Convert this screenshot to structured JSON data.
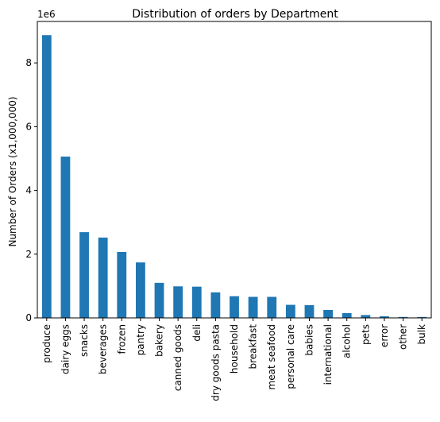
{
  "chart_data": {
    "type": "bar",
    "title": "Distribution of orders by Department",
    "xlabel": "",
    "ylabel": "Number of Orders (x1,000,000)",
    "offset_label": "1e6",
    "categories": [
      "produce",
      "dairy eggs",
      "snacks",
      "beverages",
      "frozen",
      "pantry",
      "bakery",
      "canned goods",
      "deli",
      "dry goods pasta",
      "household",
      "breakfast",
      "meat seafood",
      "personal care",
      "babies",
      "international",
      "alcohol",
      "pets",
      "error",
      "other",
      "bulk"
    ],
    "values": [
      8.87,
      5.06,
      2.69,
      2.52,
      2.07,
      1.74,
      1.1,
      0.99,
      0.98,
      0.8,
      0.68,
      0.66,
      0.66,
      0.41,
      0.4,
      0.25,
      0.15,
      0.09,
      0.05,
      0.03,
      0.03
    ],
    "yticks": [
      "0",
      "2",
      "4",
      "6",
      "8"
    ],
    "ylim": [
      0,
      9.3
    ],
    "grid": false,
    "bar_color": "#1f77b4"
  }
}
